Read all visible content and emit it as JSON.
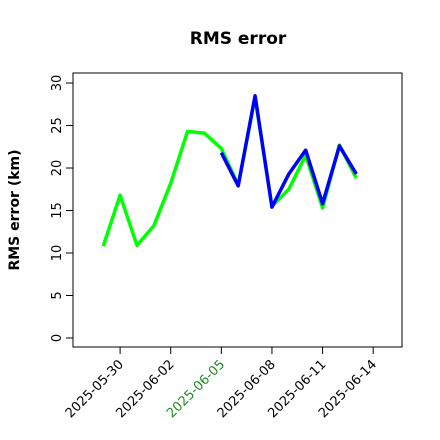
{
  "chart_data": {
    "type": "line",
    "title": "RMS error",
    "ylabel": "RMS error (km)",
    "x": [
      "2025-05-29",
      "2025-05-30",
      "2025-05-31",
      "2025-06-01",
      "2025-06-02",
      "2025-06-03",
      "2025-06-04",
      "2025-06-05",
      "2025-06-06",
      "2025-06-07",
      "2025-06-08",
      "2025-06-09",
      "2025-06-10",
      "2025-06-11",
      "2025-06-12",
      "2025-06-13"
    ],
    "series": [
      {
        "name": "green",
        "color": "#00ff00",
        "values": [
          10.8,
          16.8,
          10.9,
          13.2,
          18.2,
          24.3,
          24.1,
          22.3,
          18.0,
          28.3,
          15.5,
          17.5,
          21.5,
          15.3,
          22.7,
          18.8
        ]
      },
      {
        "name": "blue",
        "color": "#0000ff",
        "values": [
          null,
          null,
          null,
          null,
          null,
          null,
          null,
          21.8,
          17.9,
          28.5,
          15.4,
          19.3,
          22.1,
          15.8,
          22.6,
          19.3
        ]
      }
    ],
    "xlim": [
      "2025-05-27T05:00:00Z",
      "2025-06-15T17:00:00Z"
    ],
    "xticks": [
      "2025-05-30",
      "2025-06-02",
      "2025-06-05",
      "2025-06-08",
      "2025-06-11",
      "2025-06-14"
    ],
    "xtick_label_colors": [
      "#000000",
      "#000000",
      "#228b22",
      "#000000",
      "#000000",
      "#000000"
    ],
    "ylim": [
      -1.06,
      31.18
    ],
    "yticks": [
      0,
      5,
      10,
      15,
      20,
      25,
      30
    ]
  }
}
